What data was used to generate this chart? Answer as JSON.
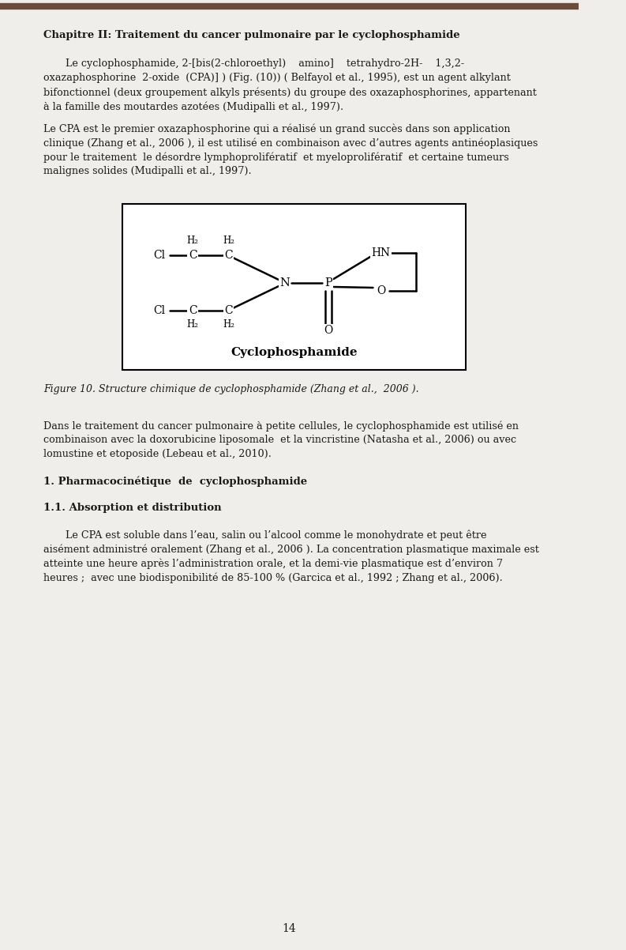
{
  "page_width": 7.93,
  "page_height": 12.02,
  "bg_color": "#f0eeea",
  "text_color": "#1a1a1a",
  "header_line_color": "#6b4c3b",
  "chapter_title": "Chapitre II: Traitement du cancer pulmonaire par le cyclophosphamide",
  "para1_line1": "       Le cyclophosphamide, 2-[bis(2-chloroethyl)    amino]    tetrahydro-2H-    1,3,2-",
  "para1_line2": "oxazaphosphorine  2-oxide  (CPA)] ) (Fig. (10)) ( Belfayol et al., 1995), est un agent alkylant",
  "para1_line3": "bifonctionnel (deux groupement alkyls présents) du groupe des oxazaphosphorines, appartenant",
  "para1_line4": "à la famille des moutardes azotées (Mudipalli et al., 1997).",
  "para2_line1": "Le CPA est le premier oxazaphosphorine qui a réalisé un grand succès dans son application",
  "para2_line2": "clinique (Zhang et al., 2006 ), il est utilisé en combinaison avec d’autres agents antinéoplasiques",
  "para2_line3": "pour le traitement  le désordre lymphoprolifératif  et myeloprolifératif  et certaine tumeurs",
  "para2_line4": "malignes solides (Mudipalli et al., 1997).",
  "figure_caption": "Figure 10. Structure chimique de cyclophosphamide (Zhang et al.,  2006 ).",
  "para3_line1": "Dans le traitement du cancer pulmonaire à petite cellules, le cyclophosphamide est utilisé en",
  "para3_line2": "combinaison avec la doxorubicine liposomale  et la vincristine (Natasha et al., 2006) ou avec",
  "para3_line3": "lomustine et etoposide (Lebeau et al., 2010).",
  "section1": "1. Pharmacocinétique  de  cyclophosphamide",
  "section11": "1.1. Absorption et distribution",
  "para4_line1": "       Le CPA est soluble dans l’eau, salin ou l’alcool comme le monohydrate et peut être",
  "para4_line2": "aisément administré oralement (Zhang et al., 2006 ). La concentration plasmatique maximale est",
  "para4_line3": "atteinte une heure après l’administration orale, et la demi-vie plasmatique est d’environ 7",
  "para4_line4": "heures ;  avec une biodisponibilité de 85-100 % (Garcica et al., 1992 ; Zhang et al., 2006).",
  "page_number": "14"
}
